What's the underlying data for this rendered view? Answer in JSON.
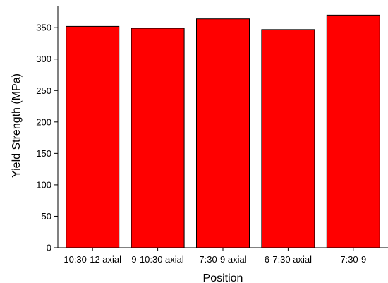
{
  "chart_data": {
    "type": "bar",
    "categories": [
      "10:30-12 axial",
      "9-10:30 axial",
      "7:30-9 axial",
      "6-7:30 axial",
      "7:30-9"
    ],
    "values": [
      352,
      349,
      364,
      347,
      370
    ],
    "xlabel": "Position",
    "ylabel": "Yield Strength (MPa)",
    "ylim": [
      0,
      385
    ],
    "yticks": [
      0,
      50,
      100,
      150,
      200,
      250,
      300,
      350
    ],
    "grid": false,
    "legend": "none",
    "colors": {
      "bar_fill": "#ff0000",
      "bar_stroke": "#000000",
      "axis": "#000000"
    }
  }
}
